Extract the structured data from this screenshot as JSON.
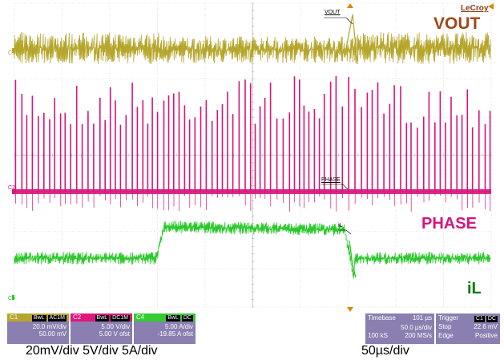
{
  "brand": "LeCroy",
  "trace_labels": {
    "vout": "VOUT",
    "phase": "PHASE",
    "il": "iL",
    "vout_marker": "VOUT",
    "phase_marker": "PHASE",
    "il_marker": "iL"
  },
  "channel_markers": {
    "c1": "C1",
    "c2": "C2",
    "c4": "C4"
  },
  "colors": {
    "c1": "#b5a52a",
    "c2": "#d6157a",
    "c4": "#28c828",
    "vout_label": "#a0471a",
    "phase_label": "#d6157a",
    "il_label": "#0a7a0a",
    "grid": "#d0d0d0",
    "info_bg": "#8a7fb0"
  },
  "channels": [
    {
      "id": "C1",
      "tags": [
        "BwL",
        "AC1M"
      ],
      "scale": "20.0 mV/div",
      "offset": "50.00 mV",
      "color": "#b5a52a"
    },
    {
      "id": "C2",
      "tags": [
        "BwL",
        "DC1M"
      ],
      "scale": "5.00 V/div",
      "offset": "5.00 V ofst",
      "color": "#e0157d"
    },
    {
      "id": "C4",
      "tags": [
        "BwL",
        "DC"
      ],
      "scale": "5.00 A/div",
      "offset": "-19.85 A ofst",
      "color": "#33cc33"
    }
  ],
  "timebase": {
    "label": "Timebase",
    "position": "101 µs",
    "per_div": "50.0 µs/div",
    "samples": "100 kS",
    "rate": "200 MS/s"
  },
  "trigger": {
    "label": "Trigger",
    "tags": [
      "C1",
      "DC"
    ],
    "mode": "Stop",
    "level": "22.6 mV",
    "type": "Edge",
    "slope": "Positive"
  },
  "captions": {
    "vertical": "20mV/div 5V/div  5A/div",
    "horizontal": "50µs/div"
  }
}
